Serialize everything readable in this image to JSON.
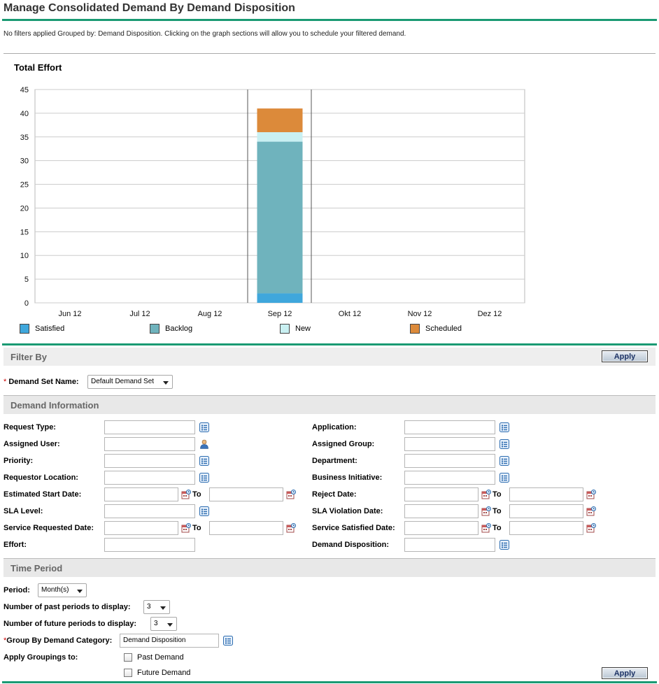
{
  "page": {
    "title": "Manage Consolidated Demand By Demand Disposition",
    "filter_info": "No filters applied Grouped by: Demand Disposition. Clicking on the graph sections will allow you to schedule your filtered demand."
  },
  "chart_title": "Total Effort",
  "chart_data": {
    "type": "bar",
    "stacked": true,
    "title": "Total Effort",
    "categories": [
      "Jun 12",
      "Jul 12",
      "Aug 12",
      "Sep 12",
      "Okt 12",
      "Nov 12",
      "Dez 12"
    ],
    "series": [
      {
        "name": "Satisfied",
        "color": "#3fa7dc",
        "values": [
          0,
          0,
          0,
          2,
          0,
          0,
          0
        ]
      },
      {
        "name": "Backlog",
        "color": "#6fb3bd",
        "values": [
          0,
          0,
          0,
          32,
          0,
          0,
          0
        ]
      },
      {
        "name": "New",
        "color": "#c9f0f2",
        "values": [
          0,
          0,
          0,
          2,
          0,
          0,
          0
        ]
      },
      {
        "name": "Scheduled",
        "color": "#dc8a3a",
        "values": [
          0,
          0,
          0,
          5,
          0,
          0,
          0
        ]
      }
    ],
    "ylim": [
      0,
      45
    ],
    "yticks": [
      0,
      5,
      10,
      15,
      20,
      25,
      30,
      35,
      40,
      45
    ],
    "grid": true,
    "legend": "bottom",
    "current_period": "Sep 12"
  },
  "filter_section": {
    "title": "Filter By",
    "apply_label": "Apply",
    "demand_set_label": "Demand Set Name:",
    "demand_set_value": "Default Demand Set"
  },
  "demand_info": {
    "title": "Demand Information",
    "to_label": "To",
    "request_type_label": "Request Type:",
    "application_label": "Application:",
    "assigned_user_label": "Assigned User:",
    "assigned_group_label": "Assigned Group:",
    "priority_label": "Priority:",
    "department_label": "Department:",
    "requestor_location_label": "Requestor Location:",
    "business_initiative_label": "Business Initiative:",
    "estimated_start_label": "Estimated Start Date:",
    "reject_date_label": "Reject Date:",
    "sla_level_label": "SLA Level:",
    "sla_violation_label": "SLA Violation Date:",
    "service_requested_label": "Service Requested Date:",
    "service_satisfied_label": "Service Satisfied Date:",
    "effort_label": "Effort:",
    "demand_disposition_label": "Demand Disposition:"
  },
  "time_period": {
    "title": "Time Period",
    "period_label": "Period:",
    "period_value": "Month(s)",
    "past_label": "Number of past periods to display:",
    "past_value": "3",
    "future_label": "Number of future periods to display:",
    "future_value": "3",
    "group_by_label": "Group By Demand Category:",
    "group_by_value": "Demand Disposition",
    "apply_groupings_label": "Apply Groupings to:",
    "past_demand_label": "Past Demand",
    "future_demand_label": "Future Demand",
    "apply_label": "Apply"
  },
  "colors": {
    "accent": "#1a9a73",
    "section_band": "#eeeeee",
    "icon_blue": "#2c6cb0"
  }
}
